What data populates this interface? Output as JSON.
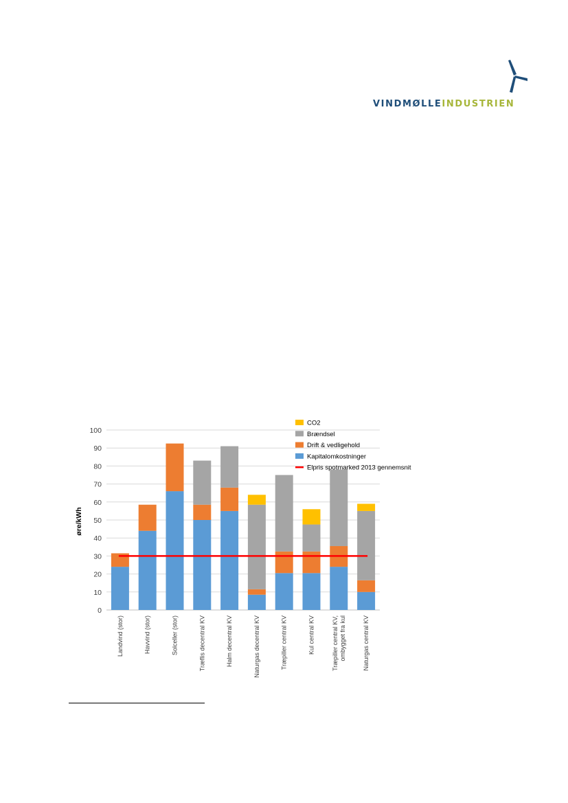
{
  "logo": {
    "text_part1": "VINDMØLLE",
    "text_part2": "INDUSTRIEN",
    "icon": "wind-turbine-icon",
    "colors": {
      "primary": "#1f4e79",
      "accent": "#a7b63a"
    }
  },
  "chart_data": {
    "type": "bar",
    "stacked": true,
    "title": "",
    "xlabel": "",
    "ylabel": "øre/kWh",
    "ylim": [
      0,
      100
    ],
    "yticks": [
      0,
      10,
      20,
      30,
      40,
      50,
      60,
      70,
      80,
      90,
      100
    ],
    "grid": true,
    "legend_position": "top-right",
    "categories": [
      "Landvind (stor)",
      "Havvind (stor)",
      "Solceller (stor)",
      "Træflis decentral KV",
      "Halm decentral KV",
      "Naturgas decentral KV",
      "Træpiller central KV",
      "Kul central KV",
      "Træpiller central KV, ombygget fra kul",
      "Naturgas central KV"
    ],
    "series": [
      {
        "name": "Kapitalomkostninger",
        "color": "#5b9bd5",
        "values": [
          24,
          44,
          66,
          50,
          55,
          8.5,
          20.5,
          20.5,
          24,
          10
        ]
      },
      {
        "name": "Drift & vedligehold",
        "color": "#ed7d31",
        "values": [
          7.5,
          14.5,
          26.5,
          8.5,
          13,
          3,
          12,
          12,
          11.5,
          6.5
        ]
      },
      {
        "name": "Brændsel",
        "color": "#a5a5a5",
        "values": [
          0,
          0,
          0,
          24.5,
          23,
          47,
          42.5,
          15,
          42.5,
          38.5
        ]
      },
      {
        "name": "CO2",
        "color": "#ffc000",
        "values": [
          0,
          0,
          0,
          0,
          0,
          5.5,
          0,
          8.5,
          0,
          4
        ]
      }
    ],
    "reference_line": {
      "name": "Elpris spotmarked 2013 gennemsnit",
      "color": "#ff0000",
      "value": 30
    },
    "legend_order": [
      "CO2",
      "Brændsel",
      "Drift & vedligehold",
      "Kapitalomkostninger",
      "Elpris spotmarked 2013 gennemsnit"
    ],
    "category_labels": [
      [
        "Landvind (stor)"
      ],
      [
        "Havvind (stor)"
      ],
      [
        "Solceller (stor)"
      ],
      [
        "Træflis decentral KV"
      ],
      [
        "Halm decentral KV"
      ],
      [
        "Naturgas decentral KV"
      ],
      [
        "Træpiller central KV"
      ],
      [
        "Kul central KV"
      ],
      [
        "Træpiller central KV,",
        "ombygget fra kul"
      ],
      [
        "Naturgas central KV"
      ]
    ]
  }
}
